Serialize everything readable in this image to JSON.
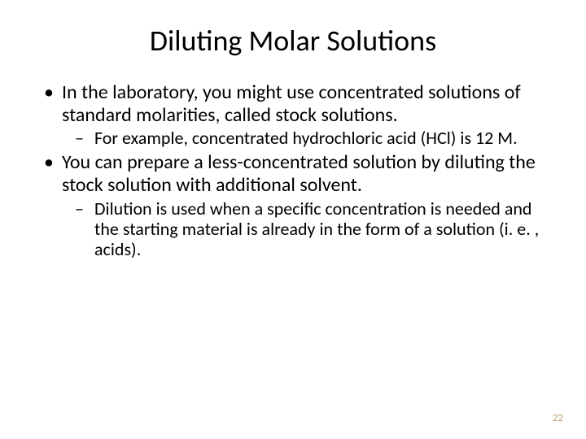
{
  "slide": {
    "title": "Diluting Molar Solutions",
    "bullets": [
      {
        "text": "In the laboratory, you might use concentrated solutions of standard molarities, called stock solutions.",
        "sub": [
          "For example, concentrated hydrochloric acid (HCl) is 12 M."
        ]
      },
      {
        "text": "You can prepare a less-concentrated solution by diluting the stock solution with additional solvent.",
        "sub": [
          "Dilution is used when a specific concentration is needed and the starting material is already in the form of a solution (i. e. , acids)."
        ]
      }
    ],
    "page_number": "22"
  },
  "style": {
    "background_color": "#ffffff",
    "text_color": "#000000",
    "title_fontsize": 36,
    "body_fontsize": 24,
    "sub_fontsize": 22,
    "pagenum_color": "#bfa06a",
    "font_family": "Calibri"
  }
}
